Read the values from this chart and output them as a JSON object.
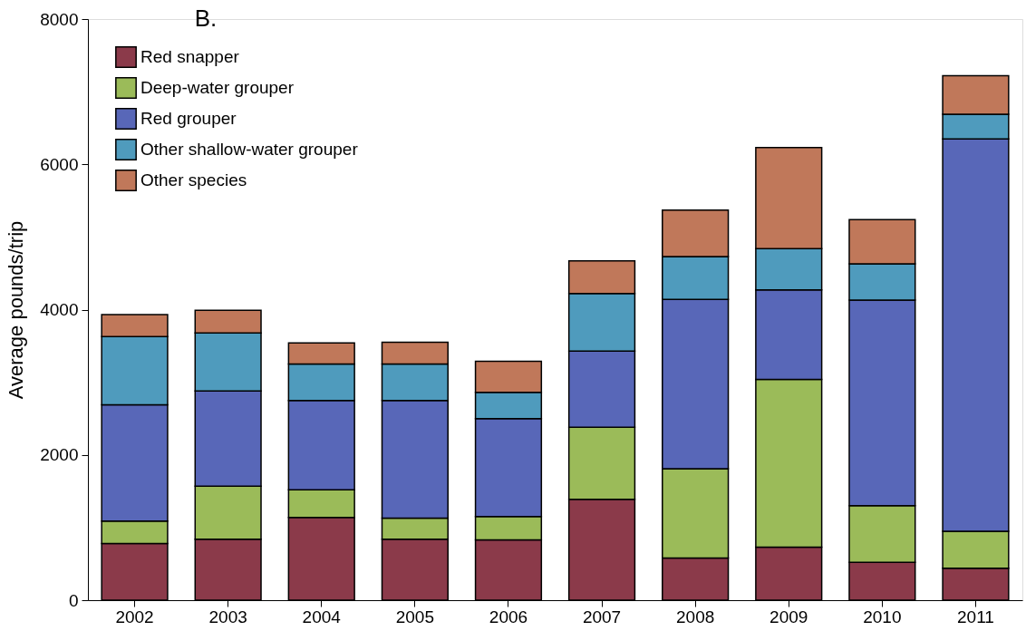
{
  "chart_data": {
    "type": "bar",
    "stacked": true,
    "ylabel": "Average pounds/trip",
    "annotations": [
      "B."
    ],
    "categories": [
      "2002",
      "2003",
      "2004",
      "2005",
      "2006",
      "2007",
      "2008",
      "2009",
      "2010",
      "2011"
    ],
    "series": [
      {
        "name": "Red snapper",
        "color": "#8b3a4a",
        "values": [
          780,
          840,
          1140,
          840,
          830,
          1390,
          580,
          730,
          520,
          440
        ]
      },
      {
        "name": "Deep-water grouper",
        "color": "#9bbb59",
        "values": [
          310,
          730,
          380,
          290,
          320,
          990,
          1230,
          2310,
          780,
          510
        ]
      },
      {
        "name": "Red grouper",
        "color": "#5867b8",
        "values": [
          1600,
          1310,
          1230,
          1620,
          1350,
          1050,
          2330,
          1230,
          2830,
          5400
        ]
      },
      {
        "name": "Other shallow-water grouper",
        "color": "#4f9bbd",
        "values": [
          940,
          800,
          500,
          500,
          360,
          790,
          590,
          570,
          500,
          340
        ]
      },
      {
        "name": "Other species",
        "color": "#c0785a",
        "values": [
          300,
          310,
          290,
          300,
          430,
          450,
          640,
          1390,
          610,
          530
        ]
      }
    ],
    "ylim": [
      0,
      8000
    ],
    "yticks": [
      0,
      2000,
      4000,
      6000,
      8000
    ],
    "grid": false,
    "legend": "top left"
  }
}
